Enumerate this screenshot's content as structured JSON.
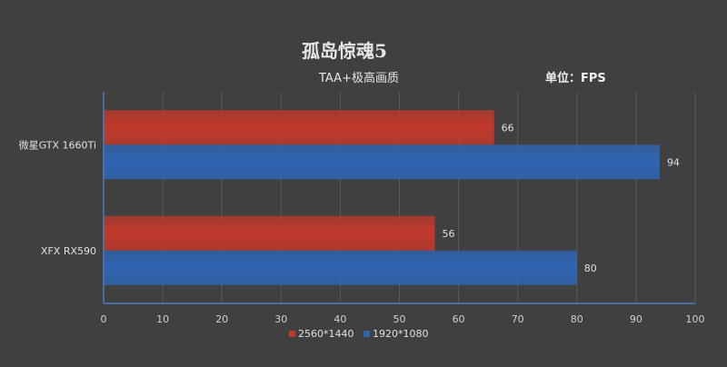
{
  "title": "孤岛惊魂5",
  "subtitle": "TAA+极高画质",
  "unit": "单位：FPS",
  "colors": {
    "background": "#404040",
    "grid": "#5a5a5a",
    "axis": "#4a7ec0",
    "series_2560": "#c0392b",
    "series_1920": "#2f65b3"
  },
  "chart_data": {
    "type": "bar",
    "orientation": "horizontal",
    "title": "孤岛惊魂5",
    "subtitle": "TAA+极高画质",
    "categories": [
      "微星GTX 1660Ti",
      "XFX RX590"
    ],
    "series": [
      {
        "name": "2560*1440",
        "values": [
          66,
          56
        ]
      },
      {
        "name": "1920*1080",
        "values": [
          94,
          80
        ]
      }
    ],
    "xlim": [
      0,
      100
    ],
    "xticks": [
      0,
      10,
      20,
      30,
      40,
      50,
      60,
      70,
      80,
      90,
      100
    ],
    "grid": true,
    "legend": "bottom"
  }
}
